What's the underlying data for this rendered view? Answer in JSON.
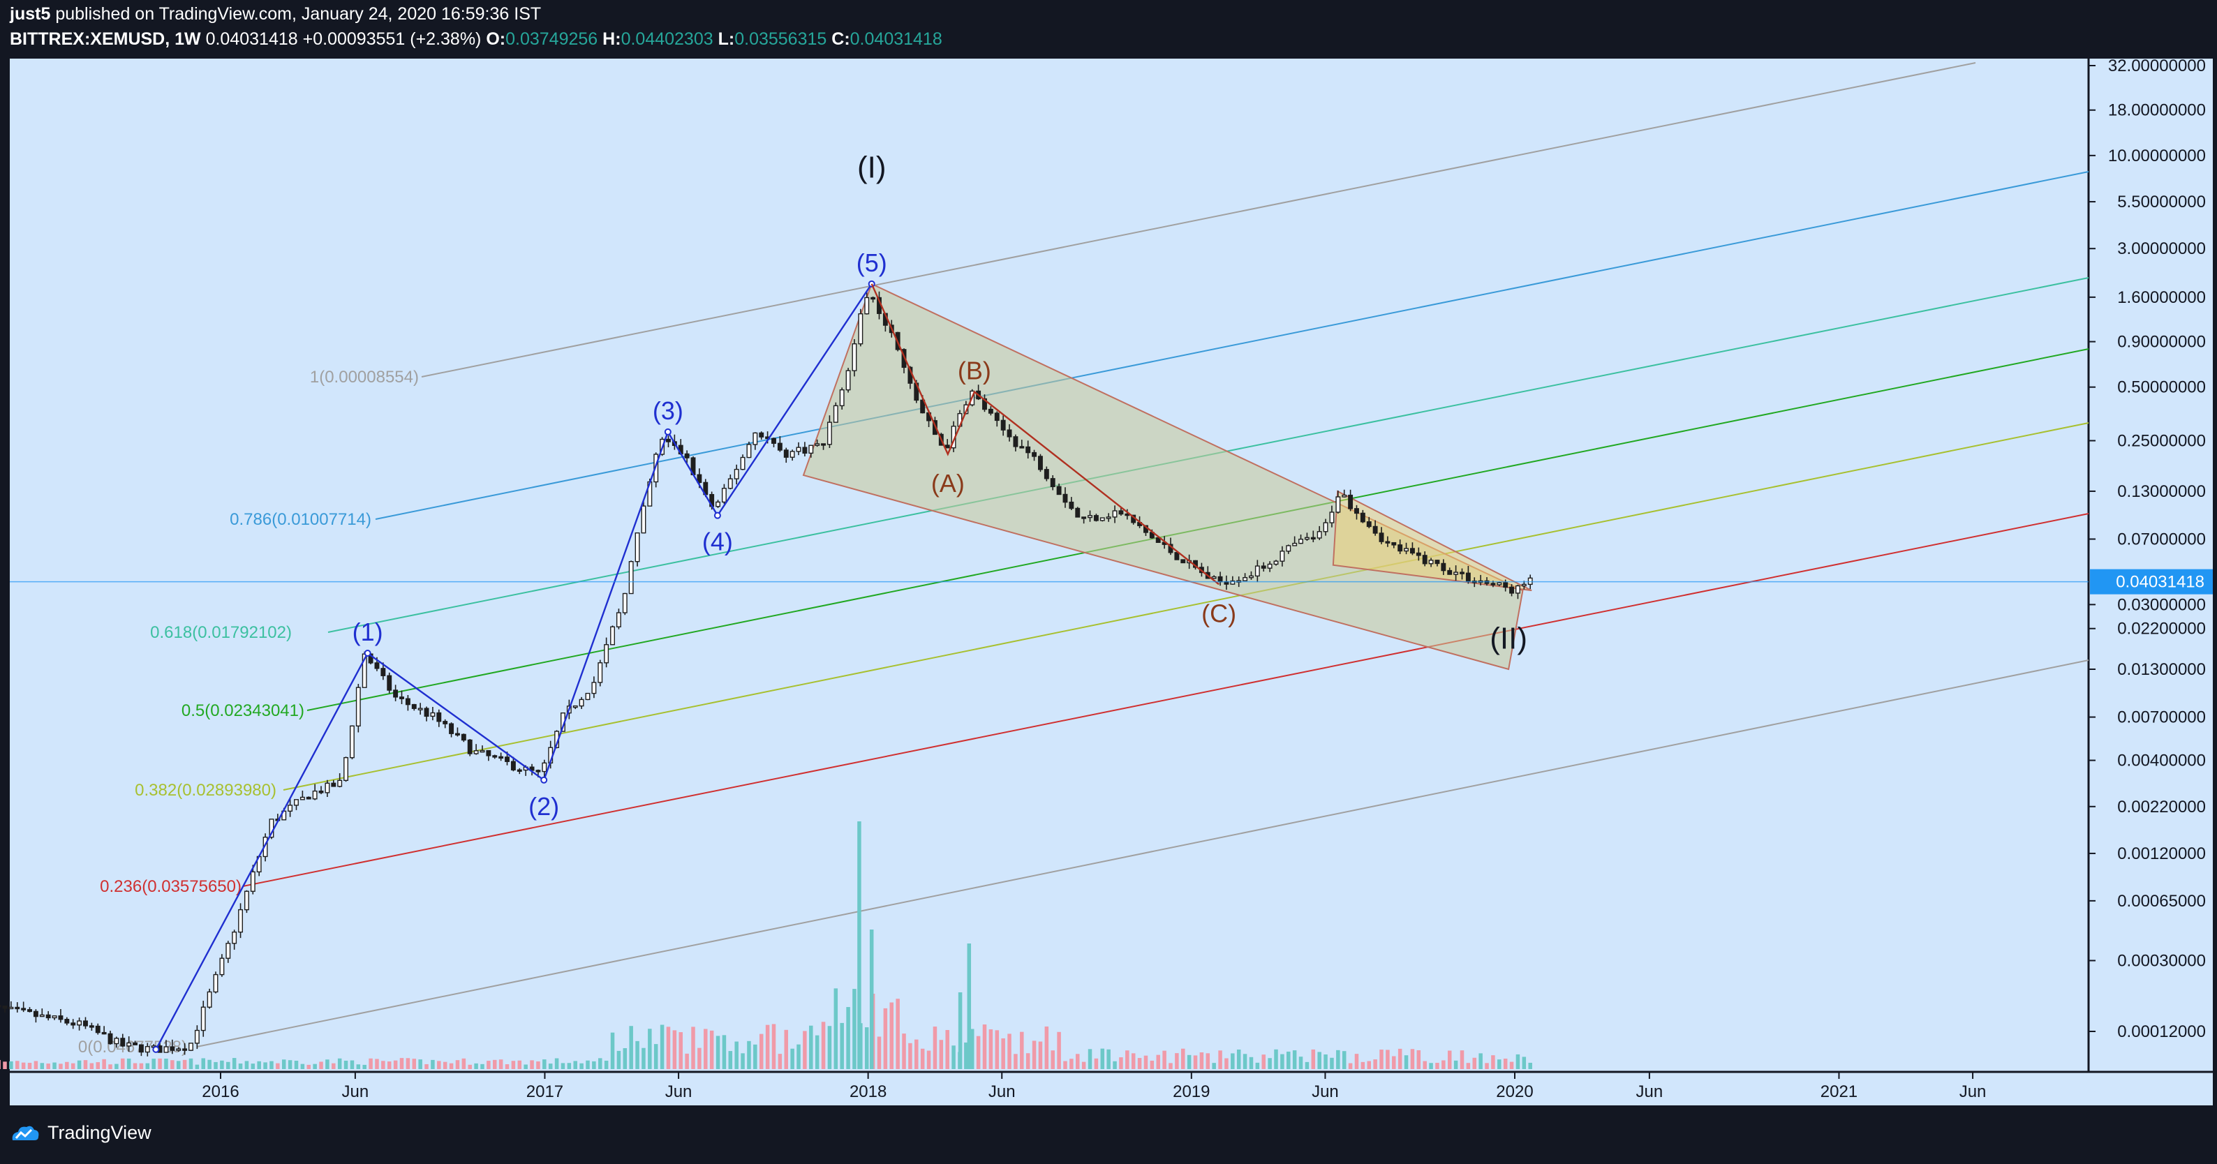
{
  "header": {
    "author": "just5",
    "published": "published on TradingView.com, January 24, 2020 16:59:36 IST",
    "symbol": "BITTREX:XEMUSD, 1W",
    "last": "0.04031418",
    "change": "+0.00093551 (+2.38%)",
    "o_label": "O:",
    "o": "0.03749256",
    "h_label": "H:",
    "h": "0.04402303",
    "l_label": "L:",
    "l": "0.03556315",
    "c_label": "C:",
    "c": "0.04031418"
  },
  "footer": {
    "brand": "TradingView"
  },
  "colors": {
    "background": "#131722",
    "plot": "#d1e6fc",
    "impulse": "#1f2fd0",
    "corrective": "#b03020",
    "up_candle": "#1e1e1e",
    "volume_up": "#6cc8c8",
    "volume_down": "#f09aa8",
    "wedge": "#c8c898",
    "price_tag": "#2196f3"
  },
  "chart_data": {
    "type": "candlestick",
    "scale": "log",
    "grid": false,
    "ylim": [
      8e-05,
      40
    ],
    "y_ticks": [
      "32.00000000",
      "18.00000000",
      "10.00000000",
      "5.50000000",
      "3.00000000",
      "1.60000000",
      "0.90000000",
      "0.50000000",
      "0.25000000",
      "0.13000000",
      "0.07000000",
      "0.03000000",
      "0.02200000",
      "0.01300000",
      "0.00700000",
      "0.00400000",
      "0.00220000",
      "0.00120000",
      "0.00065000",
      "0.00030000",
      "0.00012000"
    ],
    "y_tick_values": [
      32,
      18,
      10,
      5.5,
      3,
      1.6,
      0.9,
      0.5,
      0.25,
      0.13,
      0.07,
      0.03,
      0.022,
      0.013,
      0.007,
      0.004,
      0.0022,
      0.0012,
      0.00065,
      0.0003,
      0.00012
    ],
    "x_ticks": [
      "2016",
      "Jun",
      "2017",
      "Jun",
      "2018",
      "Jun",
      "2019",
      "Jun",
      "2020",
      "Jun",
      "2021",
      "Jun"
    ],
    "x_tick_dates": [
      "2016-01-01",
      "2016-06-01",
      "2017-01-01",
      "2017-06-01",
      "2018-01-01",
      "2018-06-01",
      "2019-01-01",
      "2019-06-01",
      "2020-01-01",
      "2020-06-01",
      "2021-01-01",
      "2021-06-01"
    ],
    "last_price": "0.04031418",
    "price_path": [
      [
        "2015-04-01",
        0.00017
      ],
      [
        "2015-06-01",
        0.00015
      ],
      [
        "2015-08-01",
        0.00013
      ],
      [
        "2015-09-15",
        0.0001
      ],
      [
        "2015-10-20",
        9.5e-05
      ],
      [
        "2015-12-01",
        0.0001
      ],
      [
        "2016-01-20",
        0.00045
      ],
      [
        "2016-03-01",
        0.0018
      ],
      [
        "2016-04-15",
        0.0026
      ],
      [
        "2016-05-20",
        0.003
      ],
      [
        "2016-06-15",
        0.016
      ],
      [
        "2016-07-20",
        0.009
      ],
      [
        "2016-09-01",
        0.007
      ],
      [
        "2016-10-15",
        0.0045
      ],
      [
        "2016-12-31",
        0.0033
      ],
      [
        "2017-01-25",
        0.007
      ],
      [
        "2017-03-01",
        0.011
      ],
      [
        "2017-04-01",
        0.03
      ],
      [
        "2017-05-15",
        0.26
      ],
      [
        "2017-06-10",
        0.21
      ],
      [
        "2017-07-15",
        0.1
      ],
      [
        "2017-08-10",
        0.18
      ],
      [
        "2017-09-01",
        0.29
      ],
      [
        "2017-10-01",
        0.21
      ],
      [
        "2017-11-15",
        0.24
      ],
      [
        "2017-12-15",
        0.7
      ],
      [
        "2018-01-05",
        1.85
      ],
      [
        "2018-02-01",
        0.95
      ],
      [
        "2018-03-01",
        0.4
      ],
      [
        "2018-04-01",
        0.22
      ],
      [
        "2018-04-30",
        0.48
      ],
      [
        "2018-06-01",
        0.3
      ],
      [
        "2018-07-15",
        0.19
      ],
      [
        "2018-09-01",
        0.09
      ],
      [
        "2018-10-15",
        0.1
      ],
      [
        "2018-12-01",
        0.065
      ],
      [
        "2019-02-01",
        0.04
      ],
      [
        "2019-03-15",
        0.045
      ],
      [
        "2019-05-01",
        0.065
      ],
      [
        "2019-06-01",
        0.075
      ],
      [
        "2019-06-20",
        0.13
      ],
      [
        "2019-07-15",
        0.095
      ],
      [
        "2019-08-15",
        0.065
      ],
      [
        "2019-10-01",
        0.052
      ],
      [
        "2019-11-15",
        0.042
      ],
      [
        "2020-01-05",
        0.036
      ],
      [
        "2020-01-20",
        0.0403
      ]
    ],
    "fib_levels": [
      {
        "label": "1(0.00008554)",
        "ratio": 1,
        "color": "#a0a0a0"
      },
      {
        "label": "0.786(0.01007714)",
        "ratio": 0.786,
        "color": "#3a9ad8"
      },
      {
        "label": "0.618(0.01792102)",
        "ratio": 0.618,
        "color": "#3cc0a0"
      },
      {
        "label": "0.5(0.02343041)",
        "ratio": 0.5,
        "color": "#22a822"
      },
      {
        "label": "0.382(0.02893980)",
        "ratio": 0.382,
        "color": "#a8c030"
      },
      {
        "label": "0.236(0.03575650)",
        "ratio": 0.236,
        "color": "#d03030"
      },
      {
        "label": "0(0.04677528)",
        "ratio": 0,
        "color": "#a0a0a0"
      }
    ],
    "impulse_wave": [
      {
        "label": "",
        "date": "2015-10-20",
        "value": 9.5e-05
      },
      {
        "label": "(1)",
        "date": "2016-06-15",
        "value": 0.016
      },
      {
        "label": "(2)",
        "date": "2016-12-31",
        "value": 0.0031
      },
      {
        "label": "(3)",
        "date": "2017-05-20",
        "value": 0.28
      },
      {
        "label": "(4)",
        "date": "2017-07-15",
        "value": 0.095
      },
      {
        "label": "(5)",
        "date": "2018-01-05",
        "value": 1.9
      }
    ],
    "corrective_wave": [
      {
        "label": "",
        "date": "2018-01-05",
        "value": 1.9
      },
      {
        "label": "(A)",
        "date": "2018-04-01",
        "value": 0.21
      },
      {
        "label": "(B)",
        "date": "2018-05-01",
        "value": 0.47
      },
      {
        "label": "(C)",
        "date": "2019-02-01",
        "value": 0.039
      }
    ],
    "cycle_labels": [
      {
        "label": "(I)",
        "date": "2018-01-05",
        "value": 7.5
      },
      {
        "label": "(II)",
        "date": "2019-12-25",
        "value": 0.017
      }
    ]
  }
}
